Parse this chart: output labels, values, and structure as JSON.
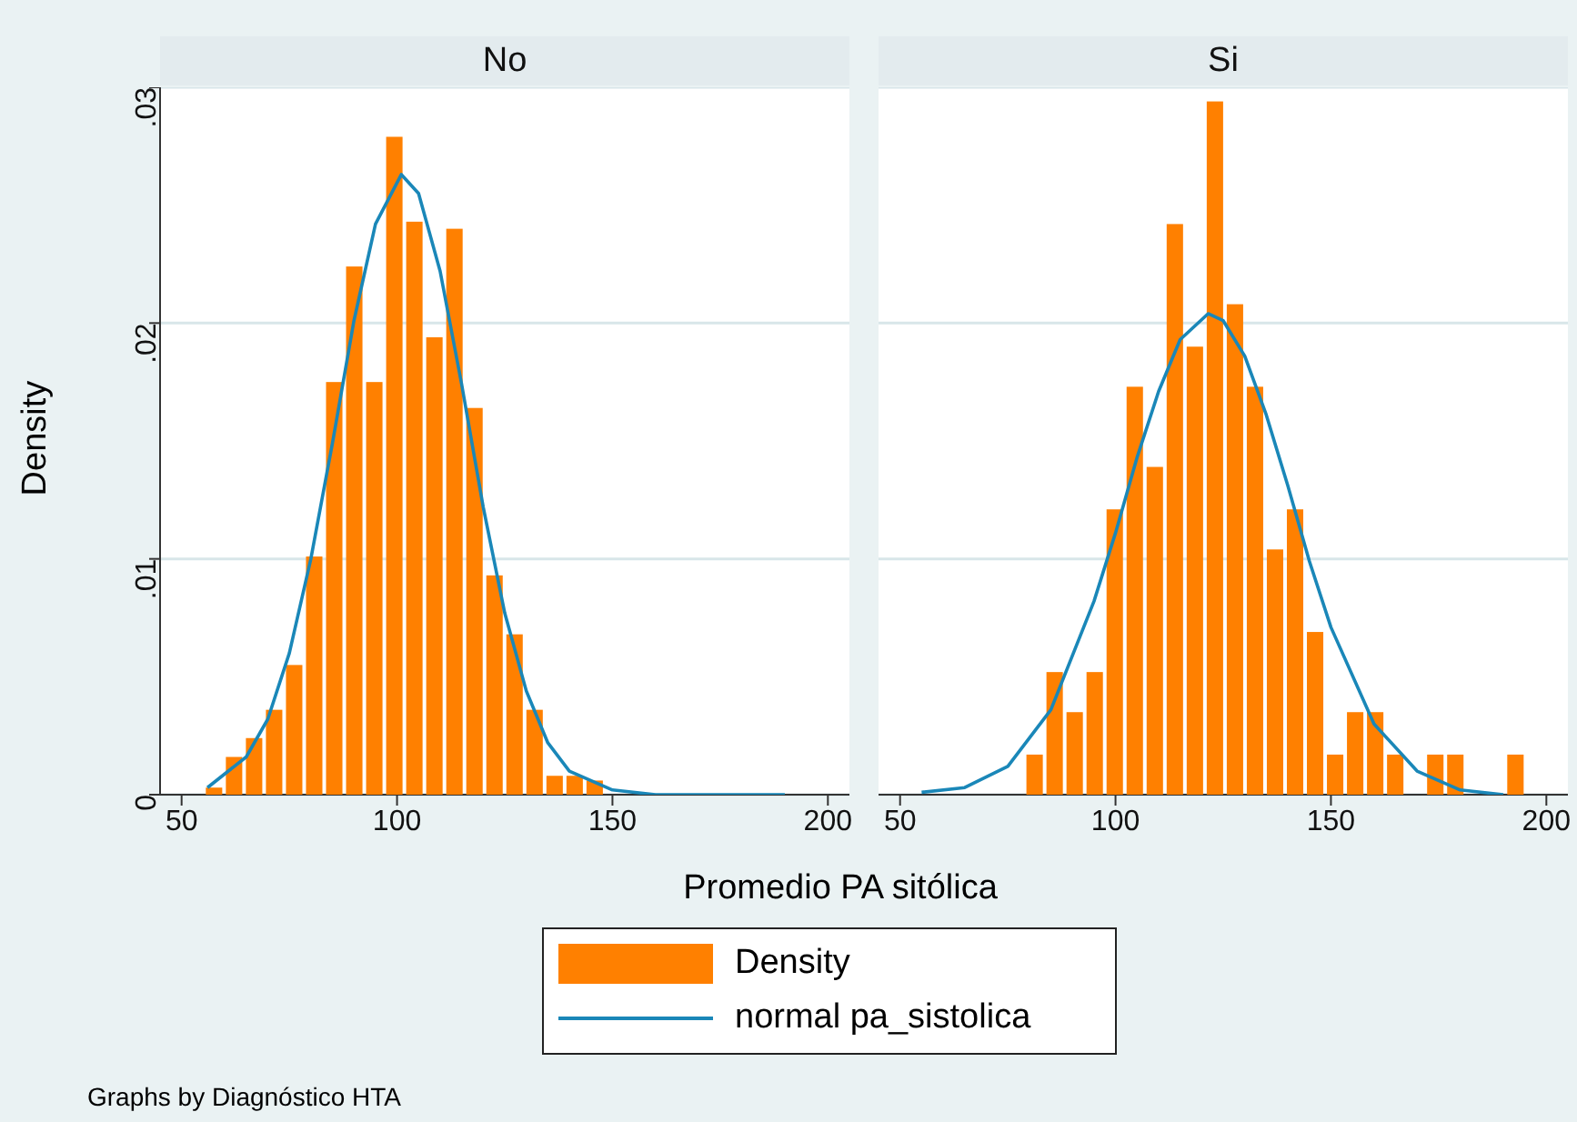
{
  "chart_data": [
    {
      "type": "histogram",
      "title": "No",
      "xlabel": "Promedio PA sitólica",
      "ylabel": "Density",
      "annotations": [
        "Graphs by Diagnóstico HTA"
      ],
      "xlim": [
        45,
        205
      ],
      "xticks": [
        50,
        100,
        150,
        200
      ],
      "ylim": [
        0,
        0.03
      ],
      "yticks": [
        {
          "value": 0,
          "label": "0"
        },
        {
          "value": 0.01,
          "label": ".01"
        },
        {
          "value": 0.02,
          "label": ".02"
        },
        {
          "value": 0.03,
          "label": ".03"
        }
      ],
      "grid": "y",
      "legend": "bottom",
      "series": [
        {
          "name": "Density",
          "color": "#ff8000",
          "bins": [
            55.2,
            59.85,
            64.5,
            69.15,
            73.8,
            78.45,
            83.1,
            87.75,
            92.4,
            97.05,
            101.7,
            106.35,
            111,
            115.65,
            120.3,
            124.95,
            129.6,
            134.25,
            138.9,
            143.55,
            148.2
          ],
          "values": [
            0.0003,
            0.0016,
            0.0024,
            0.0036,
            0.0055,
            0.0101,
            0.0175,
            0.0224,
            0.0175,
            0.0279,
            0.0243,
            0.0194,
            0.024,
            0.0164,
            0.0093,
            0.0068,
            0.0036,
            0.0008,
            0.0008,
            0.0006
          ]
        },
        {
          "name": "normal pa_sistolica",
          "type": "line",
          "color": "#1a87b8",
          "x": [
            56,
            65,
            70,
            75,
            80,
            85,
            90,
            95,
            101,
            105,
            110,
            115,
            120,
            125,
            130,
            135,
            140,
            150,
            160,
            175,
            190
          ],
          "values": [
            0.0003,
            0.0016,
            0.0032,
            0.006,
            0.01,
            0.0149,
            0.0201,
            0.0242,
            0.0263,
            0.0255,
            0.0222,
            0.0174,
            0.0122,
            0.0077,
            0.0044,
            0.0022,
            0.001,
            0.0002,
            0,
            0,
            0
          ]
        }
      ]
    },
    {
      "type": "histogram",
      "title": "Si",
      "xlim": [
        45,
        205
      ],
      "xticks": [
        50,
        100,
        150,
        200
      ],
      "ylim": [
        0,
        0.03
      ],
      "yticks": [
        0,
        0.01,
        0.02,
        0.03
      ],
      "grid": "y",
      "tick_labels": "x",
      "series": [
        {
          "color": "#ff8000",
          "bins": [
            78.9,
            83.55,
            88.2,
            92.85,
            97.5,
            102.15,
            106.8,
            111.45,
            116.1,
            120.75,
            125.4,
            130.05,
            134.7,
            139.35,
            144,
            148.65,
            153.3,
            157.95,
            162.6,
            167.25,
            171.9,
            176.55,
            181.2,
            185.85,
            190.5,
            195.15
          ],
          "values": [
            0.0017,
            0.0052,
            0.0035,
            0.0052,
            0.0121,
            0.0173,
            0.0139,
            0.0242,
            0.019,
            0.0294,
            0.0208,
            0.0173,
            0.0104,
            0.0121,
            0.0069,
            0.0017,
            0.0035,
            0.0035,
            0.0017,
            0,
            0.0017,
            0.0017,
            0,
            0,
            0.0017
          ]
        },
        {
          "type": "line",
          "color": "#1a87b8",
          "x": [
            55,
            65,
            75,
            85,
            95,
            100,
            105,
            110,
            115,
            121.5,
            125,
            130,
            135,
            140,
            145,
            150,
            160,
            170,
            180,
            190
          ],
          "values": [
            0.0001,
            0.0003,
            0.0012,
            0.0036,
            0.0082,
            0.0111,
            0.0143,
            0.0171,
            0.0193,
            0.0204,
            0.0201,
            0.0186,
            0.0161,
            0.0131,
            0.0099,
            0.0071,
            0.003,
            0.001,
            0.0002,
            0
          ]
        }
      ]
    }
  ]
}
